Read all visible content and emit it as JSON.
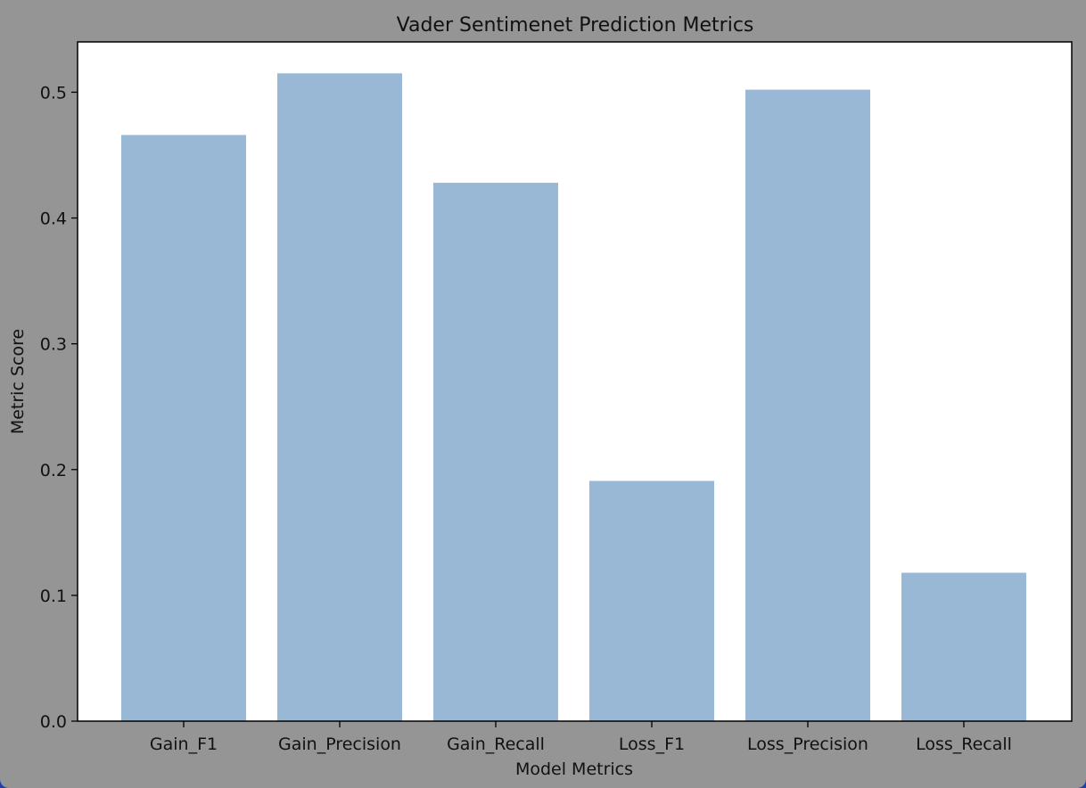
{
  "chart_data": {
    "type": "bar",
    "title": "Vader Sentimenet Prediction Metrics",
    "xlabel": "Model Metrics",
    "ylabel": "Metric Score",
    "categories": [
      "Gain_F1",
      "Gain_Precision",
      "Gain_Recall",
      "Loss_F1",
      "Loss_Precision",
      "Loss_Recall"
    ],
    "values": [
      0.466,
      0.515,
      0.428,
      0.191,
      0.502,
      0.118
    ],
    "ylim": [
      0,
      0.54
    ],
    "yticks": [
      0.0,
      0.1,
      0.2,
      0.3,
      0.4,
      0.5
    ],
    "ytick_labels": [
      "0.0",
      "0.1",
      "0.2",
      "0.3",
      "0.4",
      "0.5"
    ],
    "grid": false,
    "legend": "none",
    "colors": {
      "bar": "#98b8d6",
      "figure_background": "#959595",
      "plot_background": "#ffffff",
      "axes": "#000000"
    }
  }
}
